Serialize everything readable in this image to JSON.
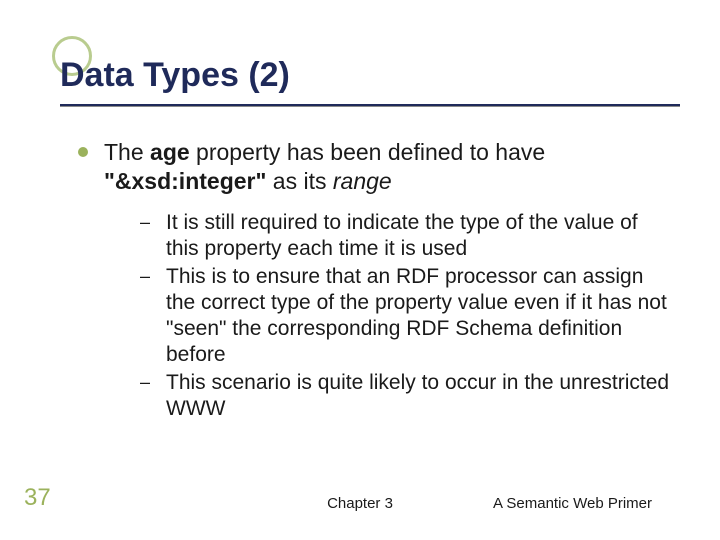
{
  "accent_color": "#9bb25c",
  "accent_ring_color": "#b9cc8f",
  "title_color": "#1f2a5a",
  "body_color": "#1a1a1a",
  "background_color": "#ffffff",
  "title_fontsize": 34,
  "body_fontsize": 23,
  "sub_fontsize": 21,
  "slide": {
    "title": "Data Types (2)",
    "bullet_prefix": "The ",
    "bullet_bold1": "age",
    "bullet_mid1": " property has been defined to have ",
    "bullet_bold2": "\"&xsd:integer\"",
    "bullet_mid2": " as its ",
    "bullet_italic": "range",
    "subs": [
      "It is still required to indicate the type of the value of this property each time it is used",
      "This is to ensure that an RDF processor can assign the correct type of the property value even if it has not \"seen\" the corresponding RDF Schema definition before",
      "This scenario is quite likely to occur in the unrestricted WWW"
    ]
  },
  "footer": {
    "page_number": "37",
    "center": "Chapter 3",
    "right": "A Semantic Web Primer"
  }
}
